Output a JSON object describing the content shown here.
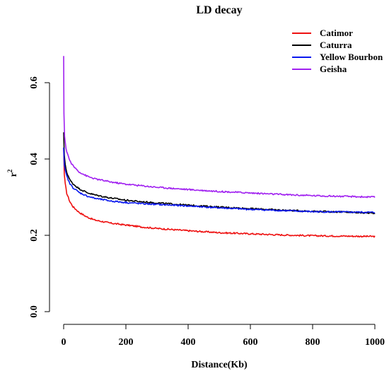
{
  "chart_data": {
    "type": "line",
    "title": "LD decay",
    "xlabel": "Distance(Kb)",
    "ylabel": "r",
    "ylabel_superscript": "2",
    "xlim": [
      0,
      1000
    ],
    "ylim": [
      0.0,
      0.6
    ],
    "xticks": [
      0,
      200,
      400,
      600,
      800,
      1000
    ],
    "yticks": [
      0.0,
      0.2,
      0.4,
      0.6
    ],
    "grid": false,
    "legend_position": "top-right",
    "series": [
      {
        "name": "Catimor",
        "color": "#ee1111",
        "x": [
          0,
          2,
          5,
          10,
          20,
          30,
          50,
          75,
          100,
          150,
          200,
          250,
          300,
          400,
          500,
          600,
          700,
          800,
          900,
          1000
        ],
        "y": [
          0.43,
          0.36,
          0.335,
          0.31,
          0.288,
          0.275,
          0.26,
          0.248,
          0.24,
          0.232,
          0.227,
          0.222,
          0.218,
          0.212,
          0.207,
          0.204,
          0.201,
          0.199,
          0.198,
          0.197
        ]
      },
      {
        "name": "Caturra",
        "color": "#000000",
        "x": [
          0,
          2,
          5,
          10,
          20,
          30,
          50,
          75,
          100,
          150,
          200,
          250,
          300,
          400,
          500,
          600,
          700,
          800,
          900,
          1000
        ],
        "y": [
          0.47,
          0.41,
          0.385,
          0.365,
          0.345,
          0.335,
          0.322,
          0.312,
          0.306,
          0.298,
          0.292,
          0.288,
          0.285,
          0.279,
          0.274,
          0.27,
          0.266,
          0.263,
          0.261,
          0.258
        ]
      },
      {
        "name": "Yellow Bourbon",
        "color": "#0a18ee",
        "x": [
          0,
          2,
          5,
          10,
          20,
          30,
          50,
          75,
          100,
          150,
          200,
          250,
          300,
          400,
          500,
          600,
          700,
          800,
          900,
          1000
        ],
        "y": [
          0.43,
          0.385,
          0.37,
          0.355,
          0.335,
          0.325,
          0.312,
          0.303,
          0.297,
          0.29,
          0.286,
          0.283,
          0.281,
          0.277,
          0.272,
          0.268,
          0.265,
          0.262,
          0.261,
          0.26
        ]
      },
      {
        "name": "Geisha",
        "color": "#a020f0",
        "x": [
          0,
          1,
          3,
          6,
          10,
          20,
          30,
          50,
          75,
          100,
          150,
          200,
          250,
          300,
          400,
          500,
          600,
          700,
          800,
          900,
          1000
        ],
        "y": [
          0.67,
          0.52,
          0.46,
          0.435,
          0.42,
          0.395,
          0.382,
          0.366,
          0.355,
          0.348,
          0.34,
          0.334,
          0.33,
          0.326,
          0.32,
          0.315,
          0.311,
          0.307,
          0.304,
          0.302,
          0.3
        ]
      }
    ]
  }
}
